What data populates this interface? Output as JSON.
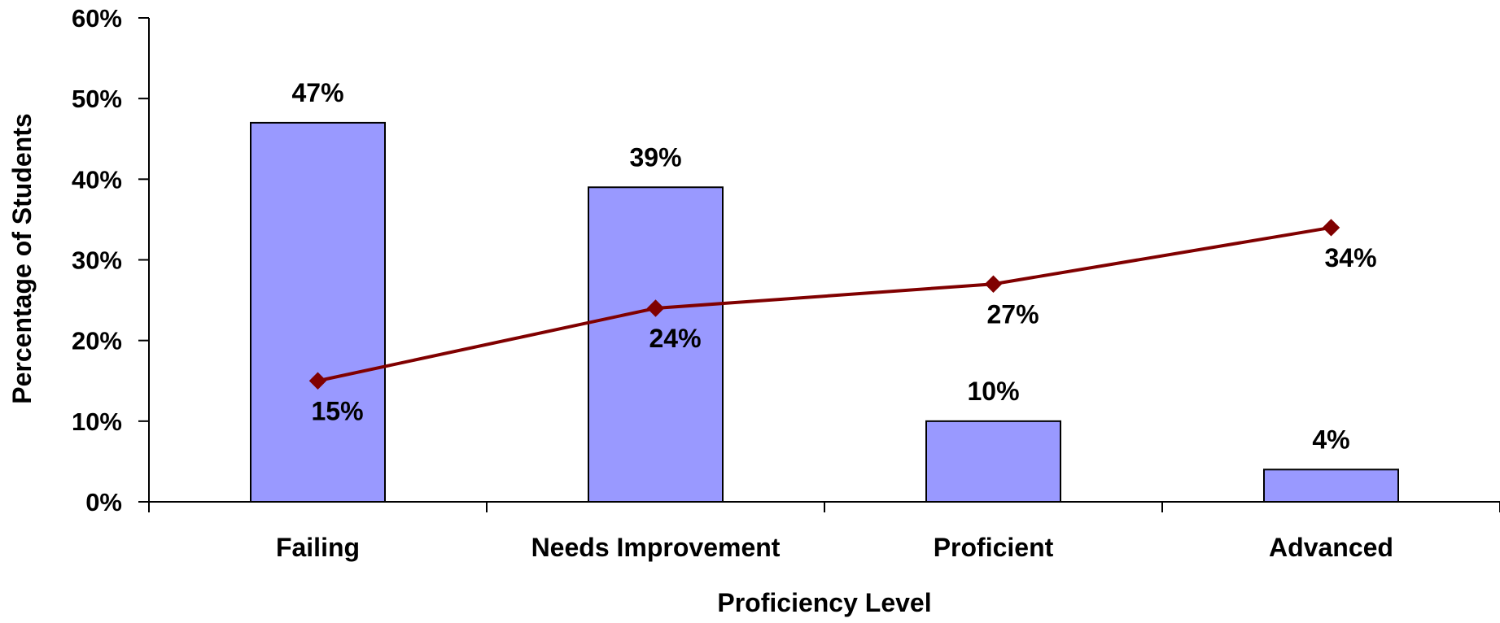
{
  "chart_data": {
    "type": "bar",
    "title": "",
    "xlabel": "Proficiency Level",
    "ylabel": "Percentage of Students",
    "categories": [
      "Failing",
      "Needs Improvement",
      "Proficient",
      "Advanced"
    ],
    "ylim": [
      0,
      60
    ],
    "yticks": [
      0,
      10,
      20,
      30,
      40,
      50,
      60
    ],
    "ytick_labels": [
      "0%",
      "10%",
      "20%",
      "30%",
      "40%",
      "50%",
      "60%"
    ],
    "grid": false,
    "legend": "none",
    "series": [
      {
        "type": "bar",
        "values": [
          47,
          39,
          10,
          4
        ],
        "value_labels": [
          "47%",
          "39%",
          "10%",
          "4%"
        ],
        "color": "#9999ff"
      },
      {
        "type": "line",
        "values": [
          15,
          24,
          27,
          34
        ],
        "value_labels": [
          "15%",
          "24%",
          "27%",
          "34%"
        ],
        "color": "#800000",
        "marker": "diamond"
      }
    ]
  }
}
